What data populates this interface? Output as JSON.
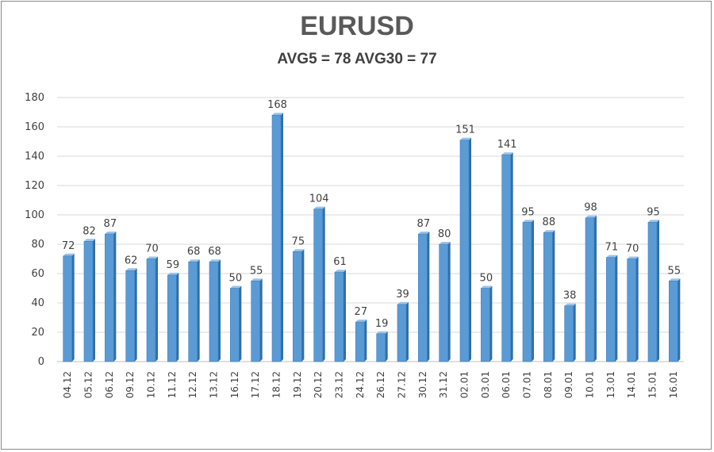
{
  "chart_data": {
    "type": "bar",
    "title": "EURUSD",
    "subtitle": "AVG5 = 78 AVG30 = 77",
    "categories": [
      "04.12",
      "05.12",
      "06.12",
      "09.12",
      "10.12",
      "11.12",
      "12.12",
      "13.12",
      "16.12",
      "17.12",
      "18.12",
      "19.12",
      "20.12",
      "23.12",
      "24.12",
      "26.12",
      "27.12",
      "30.12",
      "31.12",
      "02.01",
      "03.01",
      "06.01",
      "07.01",
      "08.01",
      "09.01",
      "10.01",
      "13.01",
      "14.01",
      "15.01",
      "16.01"
    ],
    "values": [
      72,
      82,
      87,
      62,
      70,
      59,
      68,
      68,
      50,
      55,
      168,
      75,
      104,
      61,
      27,
      19,
      39,
      87,
      80,
      151,
      50,
      141,
      95,
      88,
      38,
      98,
      71,
      70,
      95,
      55
    ],
    "ylim": [
      0,
      180
    ],
    "yticks": [
      0,
      20,
      40,
      60,
      80,
      100,
      120,
      140,
      160,
      180
    ],
    "grid": true,
    "legend": "none",
    "colors": {
      "bar": "#5b9bd5",
      "bar_top": "#9dc3e6",
      "bar_side": "#2e6fa8",
      "grid": "#d9d9d9"
    }
  }
}
